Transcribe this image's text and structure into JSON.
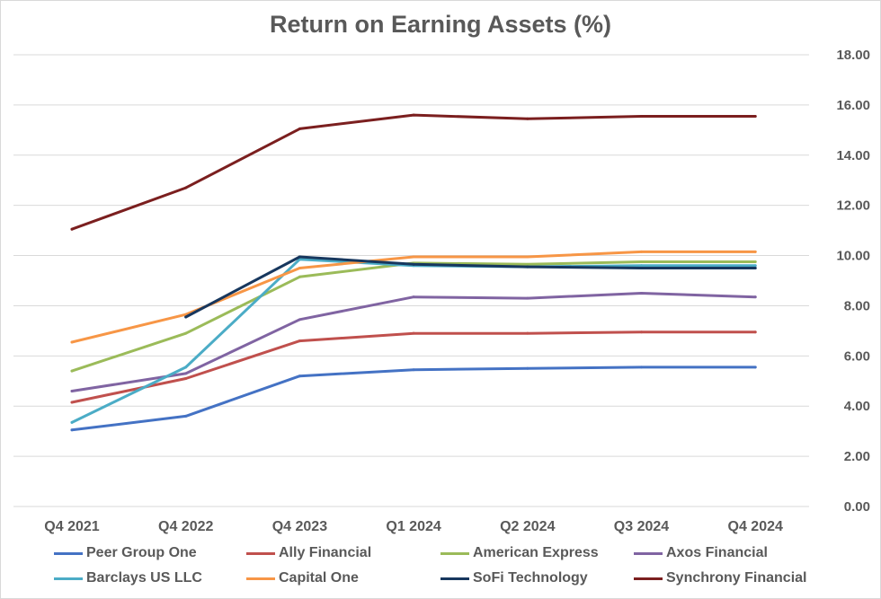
{
  "chart_data": {
    "type": "line",
    "title": "Return on Earning Assets (%)",
    "categories": [
      "Q4 2021",
      "Q4 2022",
      "Q4 2023",
      "Q1 2024",
      "Q2 2024",
      "Q3 2024",
      "Q4 2024"
    ],
    "y_ticks": [
      "0.00",
      "2.00",
      "4.00",
      "6.00",
      "8.00",
      "10.00",
      "12.00",
      "14.00",
      "16.00",
      "18.00"
    ],
    "ylim": [
      0,
      18
    ],
    "grid": true,
    "y_axis_side": "right",
    "legend_position": "bottom",
    "series": [
      {
        "name": "Peer Group One",
        "color": "#4472c4",
        "values": [
          3.05,
          3.6,
          5.2,
          5.45,
          5.5,
          5.55,
          5.55
        ]
      },
      {
        "name": "Ally Financial",
        "color": "#c0504d",
        "values": [
          4.15,
          5.1,
          6.6,
          6.9,
          6.9,
          6.95,
          6.95
        ]
      },
      {
        "name": "American Express",
        "color": "#9bbb59",
        "values": [
          5.4,
          6.9,
          9.15,
          9.7,
          9.65,
          9.75,
          9.75
        ]
      },
      {
        "name": "Axos Financial",
        "color": "#8064a2",
        "values": [
          4.6,
          5.3,
          7.45,
          8.35,
          8.3,
          8.5,
          8.35
        ]
      },
      {
        "name": "Barclays US LLC",
        "color": "#4bacc6",
        "values": [
          3.35,
          5.55,
          9.85,
          9.6,
          9.55,
          9.6,
          9.6
        ]
      },
      {
        "name": "Capital One",
        "color": "#f79646",
        "values": [
          6.55,
          7.65,
          9.5,
          9.95,
          9.95,
          10.15,
          10.15
        ]
      },
      {
        "name": "SoFi Technology",
        "color": "#17375e",
        "values": [
          null,
          7.55,
          9.95,
          9.65,
          9.55,
          9.5,
          9.5
        ]
      },
      {
        "name": "Synchrony Financial",
        "color": "#7b1f1f",
        "values": [
          11.05,
          12.7,
          15.05,
          15.6,
          15.45,
          15.55,
          15.55
        ]
      }
    ]
  }
}
